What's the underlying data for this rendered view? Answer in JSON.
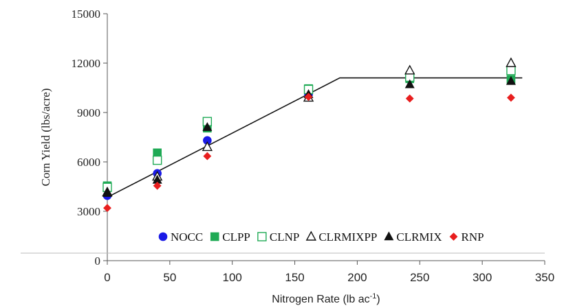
{
  "chart_data": {
    "type": "scatter",
    "title": "",
    "xlabel": "Nitrogen Rate (lb ac",
    "xlabel_sup": "-1",
    "xlabel_suffix": ")",
    "ylabel": "Corn Yield (lbs/acre)",
    "xlim": [
      0,
      350
    ],
    "ylim": [
      0,
      15000
    ],
    "xticks": [
      0,
      50,
      100,
      150,
      200,
      250,
      300,
      350
    ],
    "yticks": [
      0,
      3000,
      6000,
      9000,
      12000,
      15000
    ],
    "ytick_labels": [
      "0",
      "3000",
      "6000",
      "9000",
      "12000",
      "15000"
    ],
    "xtick_labels": [
      "0",
      "50",
      "100",
      "150",
      "200",
      "250",
      "300",
      "350"
    ],
    "grid": false,
    "legend_position": "bottom-right inside",
    "fit_line": {
      "x": [
        0,
        186,
        332
      ],
      "y": [
        3850,
        11100,
        11100
      ]
    },
    "series": [
      {
        "name": "NOCC",
        "marker": "circle",
        "filled": true,
        "color": "#1a1ae6",
        "x": [
          0,
          40,
          80,
          161,
          242,
          323
        ],
        "y": [
          3950,
          5300,
          7300,
          10100,
          11000,
          11700
        ]
      },
      {
        "name": "CLPP",
        "marker": "square",
        "filled": true,
        "color": "#1faa55",
        "x": [
          0,
          40,
          80,
          161,
          242,
          323
        ],
        "y": [
          4550,
          6550,
          8050,
          10450,
          11050,
          11000
        ]
      },
      {
        "name": "CLNP",
        "marker": "square",
        "filled": false,
        "color": "#1faa55",
        "x": [
          0,
          40,
          80,
          161,
          242,
          323
        ],
        "y": [
          4450,
          6100,
          8450,
          10400,
          11150,
          11550
        ]
      },
      {
        "name": "CLRMIXPP",
        "marker": "triangle",
        "filled": false,
        "color": "#111111",
        "x": [
          0,
          40,
          80,
          161,
          242,
          323
        ],
        "y": [
          4150,
          5100,
          6900,
          9900,
          11550,
          12000
        ]
      },
      {
        "name": "CLRMIX",
        "marker": "triangle",
        "filled": true,
        "color": "#111111",
        "x": [
          0,
          40,
          80,
          161,
          242,
          323
        ],
        "y": [
          4100,
          4900,
          8100,
          10100,
          10700,
          10900
        ]
      },
      {
        "name": "RNP",
        "marker": "diamond",
        "filled": true,
        "color": "#e81e1e",
        "x": [
          0,
          40,
          80,
          161,
          242,
          323
        ],
        "y": [
          3200,
          4550,
          6350,
          9950,
          9850,
          9900
        ]
      }
    ]
  }
}
